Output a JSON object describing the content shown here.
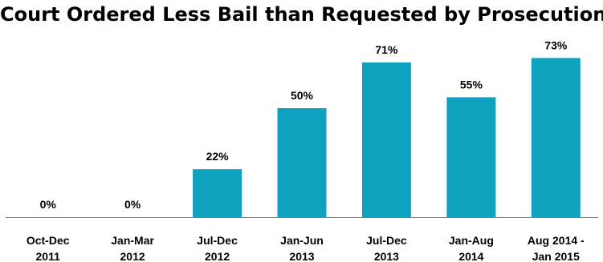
{
  "colors": {
    "bar": "#0FA2BE",
    "axis": "#808080",
    "text": "#000000"
  },
  "chart_data": {
    "type": "bar",
    "title": "Court Ordered Less Bail than Requested by Prosecution",
    "categories": [
      [
        "Oct-Dec",
        "2011"
      ],
      [
        "Jan-Mar",
        "2012"
      ],
      [
        "Jul-Dec",
        "2012"
      ],
      [
        "Jan-Jun",
        "2013"
      ],
      [
        "Jul-Dec",
        "2013"
      ],
      [
        "Jan-Aug",
        "2014"
      ],
      [
        "Aug 2014 -",
        "Jan 2015"
      ]
    ],
    "values": [
      0,
      0,
      22,
      50,
      71,
      55,
      73
    ],
    "data_labels": [
      "0%",
      "0%",
      "22%",
      "50%",
      "71%",
      "55%",
      "73%"
    ],
    "unit": "%",
    "ylim": [
      0,
      100
    ],
    "grid": false,
    "legend": "none",
    "xlabel": "",
    "ylabel": ""
  }
}
